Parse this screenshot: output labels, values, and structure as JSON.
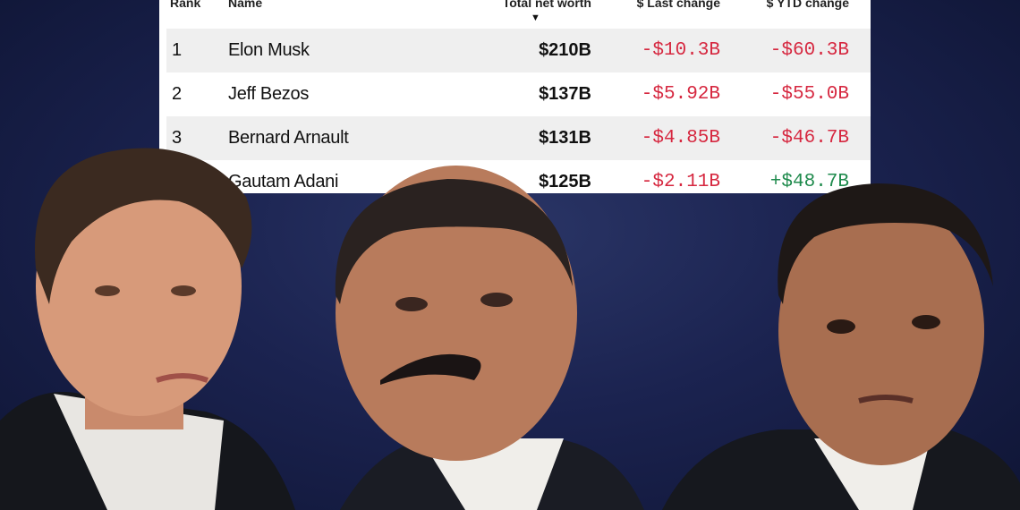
{
  "table": {
    "headers": {
      "rank": "Rank",
      "name": "Name",
      "worth": "Total net worth",
      "last": "$ Last change",
      "ytd": "$ YTD change"
    },
    "sort_indicator": "▼",
    "rows": [
      {
        "rank": "1",
        "name": "Elon Musk",
        "worth": "$210B",
        "last": "-$10.3B",
        "ytd": "-$60.3B"
      },
      {
        "rank": "2",
        "name": "Jeff Bezos",
        "worth": "$137B",
        "last": "-$5.92B",
        "ytd": "-$55.0B"
      },
      {
        "rank": "3",
        "name": "Bernard Arnault",
        "worth": "$131B",
        "last": "-$4.85B",
        "ytd": "-$46.7B"
      },
      {
        "rank": "",
        "name": "Gautam Adani",
        "worth": "$125B",
        "last": "-$2.11B",
        "ytd": "+$48.7B"
      }
    ]
  },
  "colors": {
    "negative": "#d62840",
    "positive": "#1e8a4c",
    "background": "#1b2350"
  }
}
